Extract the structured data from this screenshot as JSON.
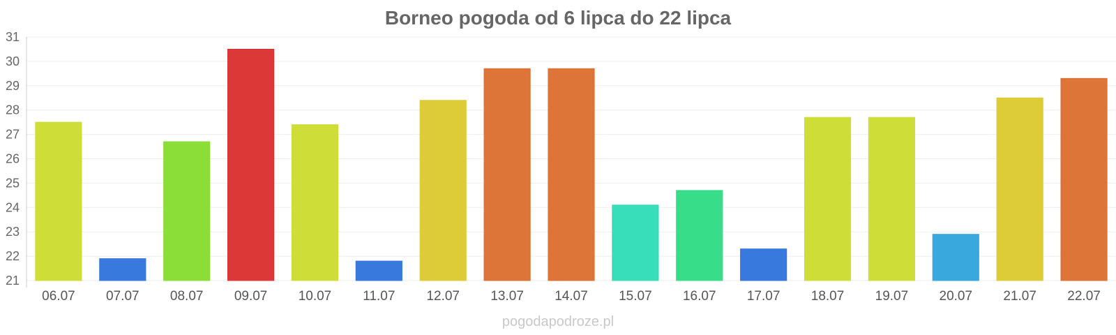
{
  "chart_data": {
    "type": "bar",
    "title": "Borneo pogoda od 6 lipca do 22 lipca",
    "xlabel": "",
    "ylabel": "",
    "ylim": [
      21,
      31
    ],
    "yticks": [
      21,
      22,
      23,
      24,
      25,
      26,
      27,
      28,
      29,
      30,
      31
    ],
    "grid": true,
    "legend": "none",
    "categories": [
      "06.07",
      "07.07",
      "08.07",
      "09.07",
      "10.07",
      "11.07",
      "12.07",
      "13.07",
      "14.07",
      "15.07",
      "16.07",
      "17.07",
      "18.07",
      "19.07",
      "20.07",
      "21.07",
      "22.07"
    ],
    "values": [
      27.5,
      21.9,
      26.7,
      30.5,
      27.4,
      21.8,
      28.4,
      29.7,
      29.7,
      24.1,
      24.7,
      22.3,
      27.7,
      27.7,
      22.9,
      28.5,
      29.3
    ],
    "colors": [
      "#cddc34",
      "#3476dc",
      "#89dc34",
      "#dc3434",
      "#cddc34",
      "#3476dc",
      "#dccb34",
      "#dc7134",
      "#dc7134",
      "#34dcb8",
      "#34dc87",
      "#3476dc",
      "#cddc34",
      "#cddc34",
      "#34a6dc",
      "#dccb34",
      "#dc7134"
    ]
  },
  "watermark": "pogodapodroze.pl"
}
